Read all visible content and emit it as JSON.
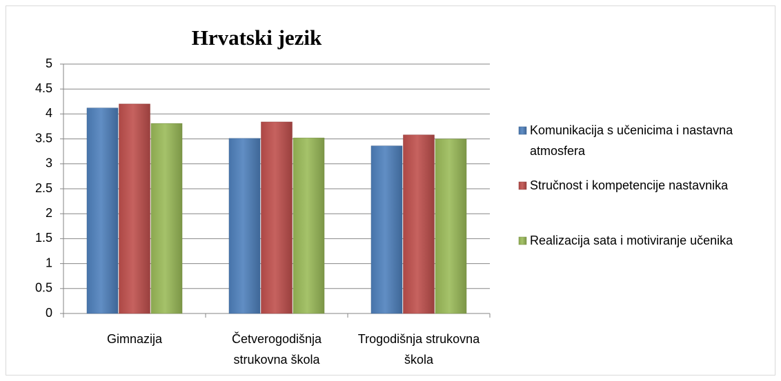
{
  "chart_data": {
    "type": "bar",
    "title": "Hrvatski jezik",
    "categories": [
      "Gimnazija",
      "Četverogodišnja strukovna škola",
      "Trogodišnja strukovna škola"
    ],
    "series": [
      {
        "name": "Komunikacija s učenicima i nastavna atmosfera",
        "color": "#4f81bd",
        "values": [
          4.12,
          3.51,
          3.36
        ]
      },
      {
        "name": "Stručnost i kompetencije nastavnika",
        "color": "#c0504d",
        "values": [
          4.2,
          3.84,
          3.58
        ]
      },
      {
        "name": "Realizacija sata i motiviranje učenika",
        "color": "#9bbb59",
        "values": [
          3.81,
          3.52,
          3.5
        ]
      }
    ],
    "ylim": [
      0,
      5
    ],
    "yticks": [
      0,
      0.5,
      1,
      1.5,
      2,
      2.5,
      3,
      3.5,
      4,
      4.5,
      5
    ],
    "grid": true,
    "legend": "right"
  }
}
